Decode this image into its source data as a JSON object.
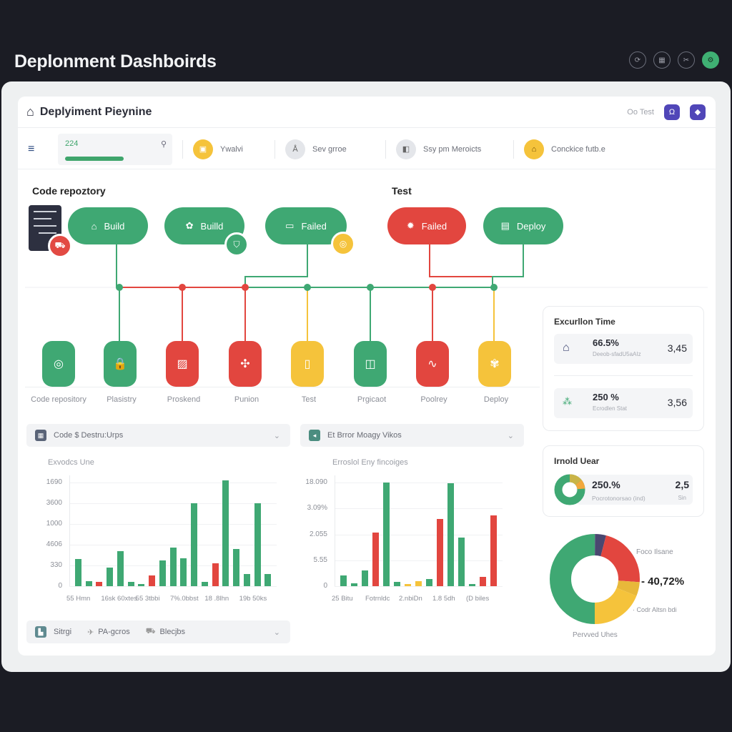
{
  "app": {
    "title": "Deplonment Dashboirds",
    "top_icons": [
      {
        "name": "refresh-icon",
        "glyph": "⟳"
      },
      {
        "name": "grid-icon",
        "glyph": "▦"
      },
      {
        "name": "tools-icon",
        "glyph": "✂"
      },
      {
        "name": "settings-icon",
        "glyph": "⚙"
      }
    ]
  },
  "header": {
    "title": "Deplyiment Pieynine",
    "home_glyph": "⌂",
    "on_test": "Oo Test",
    "buttons": [
      {
        "name": "notification-button",
        "glyph": "Ω"
      },
      {
        "name": "pin-button",
        "glyph": "◆"
      }
    ]
  },
  "toolbar": {
    "menu_glyph": "≡",
    "progress": {
      "value": "224",
      "percent": 55,
      "icon": "⚲"
    },
    "items": [
      {
        "label": "Ywalvi",
        "color": "#f5c33b",
        "glyph": "▣"
      },
      {
        "label": "Sev grroe",
        "color": "#e4e6ea",
        "glyph": "Å"
      },
      {
        "label": "Ssy pm Meroicts",
        "color": "#e4e6ea",
        "glyph": "◧"
      },
      {
        "label": "Conckice futb.e",
        "color": "#f5c33b",
        "glyph": "⌂"
      }
    ]
  },
  "pipeline": {
    "stage_labels": [
      "Code repoztory",
      "Test"
    ],
    "pills": [
      {
        "label": "Build",
        "status": "green",
        "glyph": "⌂"
      },
      {
        "label": "Builld",
        "status": "green",
        "glyph": "✿"
      },
      {
        "label": "Failed",
        "status": "green",
        "glyph": "▭"
      },
      {
        "label": "Failed",
        "status": "red",
        "glyph": "✹"
      },
      {
        "label": "Deploy",
        "status": "green",
        "glyph": "▤"
      }
    ],
    "nodes": [
      {
        "label": "Code repository",
        "status": "green",
        "glyph": "◎"
      },
      {
        "label": "Plasistry",
        "status": "green",
        "glyph": "🔒"
      },
      {
        "label": "Proskend",
        "status": "red",
        "glyph": "▨"
      },
      {
        "label": "Punion",
        "status": "red",
        "glyph": "✣"
      },
      {
        "label": "Test",
        "status": "yellow",
        "glyph": "▯"
      },
      {
        "label": "Prgicaot",
        "status": "green",
        "glyph": "◫"
      },
      {
        "label": "Poolrey",
        "status": "red",
        "glyph": "∿"
      },
      {
        "label": "Deploy",
        "status": "yellow",
        "glyph": "✾"
      }
    ]
  },
  "accordions": {
    "code": {
      "label": "Code $ Destru:Urps"
    },
    "error": {
      "label": "Et Brror Moagy Vikos"
    },
    "bottom": {
      "items": [
        "Sitrgi",
        "PA-gcros",
        "Blecjbs"
      ]
    }
  },
  "chart_data": [
    {
      "type": "bar",
      "title": "Exvodcs Une",
      "ylabel": "",
      "xlabel": "",
      "yticks": [
        "0",
        "330",
        "4606",
        "1000",
        "3600",
        "1690"
      ],
      "xticks": [
        "55 Hmn",
        "16sk 60xtes",
        "55 3tbbi",
        "7%.0bbst",
        "18 .8lhn",
        "19b 50ks"
      ],
      "ylim": [
        0,
        6
      ],
      "series": [
        {
          "name": "bars",
          "values": [
            2.6,
            0.5,
            0.4,
            1.8,
            3.4,
            0.4,
            0.2,
            1.0,
            2.5,
            3.7,
            2.7,
            8.0,
            0.4,
            2.2,
            10.2,
            3.6,
            1.2,
            8.0,
            1.2
          ],
          "colors": [
            "g",
            "g",
            "r",
            "g",
            "g",
            "g",
            "g",
            "r",
            "g",
            "g",
            "g",
            "g",
            "g",
            "r",
            "g",
            "g",
            "g",
            "g",
            "g"
          ]
        }
      ],
      "grid": true
    },
    {
      "type": "bar",
      "title": "Erroslol Eny fincoiges",
      "yticks": [
        "0",
        "5.55",
        "2.055",
        "3.09%",
        "18.090"
      ],
      "xticks": [
        "25 Bitu",
        "Fotrnldc",
        "2.nbiDn",
        "1.8 5dh",
        "(D biles"
      ],
      "series": [
        {
          "name": "bars",
          "values": [
            1.0,
            0.3,
            1.5,
            5.2,
            10.0,
            0.4,
            0.1,
            0.5,
            0.7,
            6.5,
            9.9,
            4.7,
            0.2,
            0.9,
            6.8
          ],
          "colors": [
            "g",
            "g",
            "g",
            "r",
            "g",
            "g",
            "y",
            "y",
            "g",
            "r",
            "g",
            "g",
            "g",
            "r",
            "r"
          ]
        }
      ],
      "grid": true
    },
    {
      "type": "pie",
      "title": "Pervved Uhes",
      "annotation": "40,72%",
      "labels": [
        "Foco Ilsane",
        "Codr Altsn bdi"
      ],
      "slices": [
        {
          "label": "green",
          "value": 50,
          "color": "#3fa873"
        },
        {
          "label": "navy",
          "value": 4,
          "color": "#4a4770"
        },
        {
          "label": "red",
          "value": 22,
          "color": "#e2463f"
        },
        {
          "label": "amber",
          "value": 5,
          "color": "#e8b83a"
        },
        {
          "label": "yellow",
          "value": 19,
          "color": "#f5c33b"
        }
      ]
    }
  ],
  "execution_card": {
    "title": "Excurllon Time",
    "rows": [
      {
        "value": "66.5%",
        "sub": "Deeob-sfadU5aAIz",
        "right": "3,45",
        "glyph": "⌂"
      },
      {
        "value": "250 %",
        "sub": "Ecrodlen Stat",
        "right": "3,56",
        "glyph": "⁂"
      }
    ]
  },
  "usage_card": {
    "title": "Irnold Uear",
    "value": "250.%",
    "sub": "Pocrotonorsao (ind)",
    "right": "2,5",
    "right_sub": "Sin"
  },
  "colors": {
    "green": "#3fa873",
    "red": "#e2463f",
    "yellow": "#f5c33b",
    "accent": "#5046b8"
  }
}
